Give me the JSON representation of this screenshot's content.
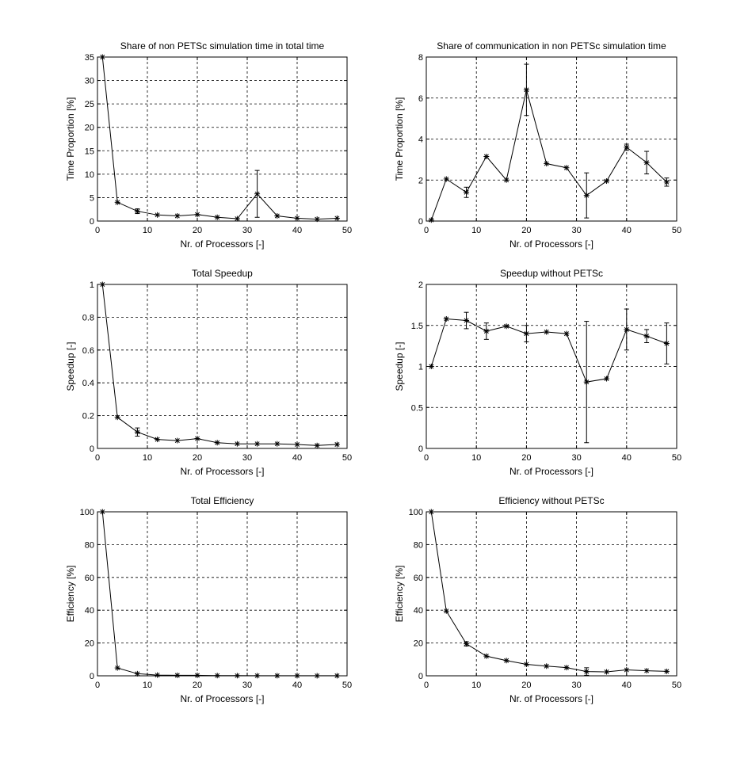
{
  "chart_data": [
    {
      "type": "line",
      "title": "Share of non PETSc simulation time in total time",
      "xlabel": "Nr. of Processors [-]",
      "ylabel": "Time Proportion [%]",
      "xlim": [
        0,
        50
      ],
      "ylim": [
        0,
        35
      ],
      "xticks": [
        0,
        10,
        20,
        30,
        40,
        50
      ],
      "yticks": [
        0,
        5,
        10,
        15,
        20,
        25,
        30,
        35
      ],
      "grid": true,
      "marker": "*",
      "x": [
        1,
        4,
        8,
        12,
        16,
        20,
        24,
        28,
        32,
        36,
        40,
        44,
        48
      ],
      "y": [
        35,
        4,
        2.1,
        1.3,
        1.1,
        1.4,
        0.8,
        0.5,
        5.8,
        1.1,
        0.6,
        0.4,
        0.6
      ],
      "errors": [
        [
          8,
          0.5
        ],
        [
          32,
          5.0
        ]
      ]
    },
    {
      "type": "line",
      "title": "Share of communication in non PETSc simulation time",
      "xlabel": "Nr. of Processors [-]",
      "ylabel": "Time Proportion [%]",
      "xlim": [
        0,
        50
      ],
      "ylim": [
        0,
        8
      ],
      "xticks": [
        0,
        10,
        20,
        30,
        40,
        50
      ],
      "yticks": [
        0,
        2,
        4,
        6,
        8
      ],
      "grid": true,
      "marker": "*",
      "x": [
        1,
        4,
        8,
        12,
        16,
        20,
        24,
        28,
        32,
        36,
        40,
        44,
        48
      ],
      "y": [
        0.05,
        2.05,
        1.4,
        3.15,
        2.0,
        6.4,
        2.8,
        2.6,
        1.25,
        1.95,
        3.6,
        2.85,
        1.9
      ],
      "errors": [
        [
          8,
          0.25
        ],
        [
          20,
          1.25
        ],
        [
          32,
          1.1
        ],
        [
          40,
          0.15
        ],
        [
          44,
          0.55
        ],
        [
          48,
          0.2
        ]
      ]
    },
    {
      "type": "line",
      "title": "Total Speedup",
      "xlabel": "Nr. of Processors [-]",
      "ylabel": "Speedup [-]",
      "xlim": [
        0,
        50
      ],
      "ylim": [
        0,
        1
      ],
      "xticks": [
        0,
        10,
        20,
        30,
        40,
        50
      ],
      "yticks": [
        0,
        0.2,
        0.4,
        0.6,
        0.8,
        1
      ],
      "grid": true,
      "marker": "*",
      "x": [
        1,
        4,
        8,
        12,
        16,
        20,
        24,
        28,
        32,
        36,
        40,
        44,
        48
      ],
      "y": [
        1,
        0.19,
        0.1,
        0.055,
        0.048,
        0.06,
        0.035,
        0.028,
        0.028,
        0.028,
        0.024,
        0.018,
        0.024
      ],
      "errors": [
        [
          8,
          0.025
        ]
      ]
    },
    {
      "type": "line",
      "title": "Speedup without PETSc",
      "xlabel": "Nr. of Processors [-]",
      "ylabel": "Speedup [-]",
      "xlim": [
        0,
        50
      ],
      "ylim": [
        0,
        2
      ],
      "xticks": [
        0,
        10,
        20,
        30,
        40,
        50
      ],
      "yticks": [
        0,
        0.5,
        1,
        1.5,
        2
      ],
      "grid": true,
      "marker": "*",
      "x": [
        1,
        4,
        8,
        12,
        16,
        20,
        24,
        28,
        32,
        36,
        40,
        44,
        48
      ],
      "y": [
        1.0,
        1.58,
        1.56,
        1.43,
        1.49,
        1.4,
        1.42,
        1.4,
        0.81,
        0.85,
        1.45,
        1.37,
        1.28
      ],
      "errors": [
        [
          8,
          0.1
        ],
        [
          12,
          0.1
        ],
        [
          20,
          0.1
        ],
        [
          32,
          0.74
        ],
        [
          40,
          0.25
        ],
        [
          44,
          0.08
        ],
        [
          48,
          0.25
        ]
      ]
    },
    {
      "type": "line",
      "title": "Total Efficiency",
      "xlabel": "Nr. of Processors [-]",
      "ylabel": "Efficiency [%]",
      "xlim": [
        0,
        50
      ],
      "ylim": [
        0,
        100
      ],
      "xticks": [
        0,
        10,
        20,
        30,
        40,
        50
      ],
      "yticks": [
        0,
        20,
        40,
        60,
        80,
        100
      ],
      "grid": true,
      "marker": "*",
      "x": [
        1,
        4,
        8,
        12,
        16,
        20,
        24,
        28,
        32,
        36,
        40,
        44,
        48
      ],
      "y": [
        100,
        4.8,
        1.3,
        0.45,
        0.3,
        0.3,
        0.15,
        0.1,
        0.09,
        0.08,
        0.06,
        0.04,
        0.05
      ],
      "errors": []
    },
    {
      "type": "line",
      "title": "Efficiency without PETSc",
      "xlabel": "Nr. of Processors [-]",
      "ylabel": "Efficiency [%]",
      "xlim": [
        0,
        50
      ],
      "ylim": [
        0,
        100
      ],
      "xticks": [
        0,
        10,
        20,
        30,
        40,
        50
      ],
      "yticks": [
        0,
        20,
        40,
        60,
        80,
        100
      ],
      "grid": true,
      "marker": "*",
      "x": [
        1,
        4,
        8,
        12,
        16,
        20,
        24,
        28,
        32,
        36,
        40,
        44,
        48
      ],
      "y": [
        100,
        39.5,
        19.5,
        12,
        9.3,
        7,
        5.9,
        5,
        2.6,
        2.4,
        3.6,
        3.1,
        2.7
      ],
      "errors": [
        [
          8,
          1.3
        ],
        [
          32,
          2.3
        ]
      ]
    }
  ]
}
